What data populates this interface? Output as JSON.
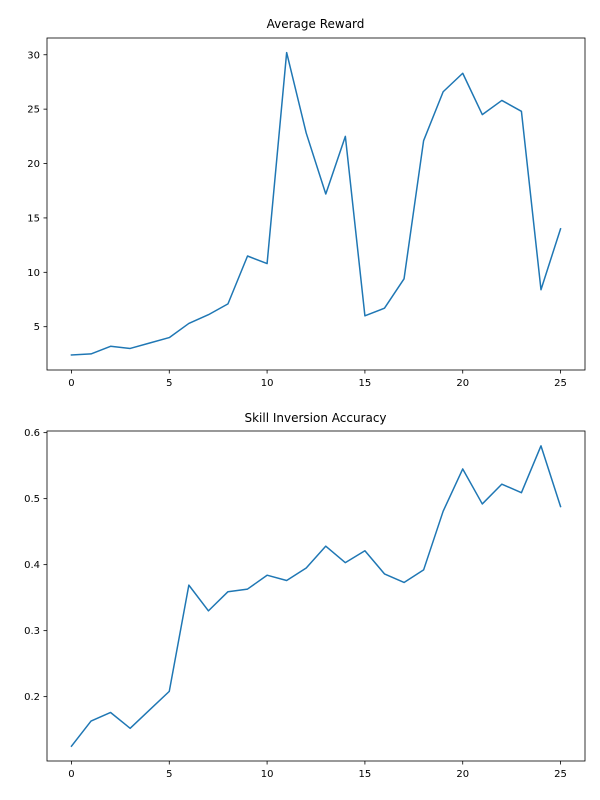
{
  "colors": {
    "series": "#1f77b4",
    "axis": "#000000",
    "background": "#ffffff"
  },
  "chart_data": [
    {
      "type": "line",
      "title": "Average Reward",
      "xlabel": "",
      "ylabel": "",
      "xlim": [
        -1.25,
        26.25
      ],
      "ylim": [
        1.02,
        31.54
      ],
      "xticks": [
        0,
        5,
        10,
        15,
        20,
        25
      ],
      "yticks": [
        5,
        10,
        15,
        20,
        25,
        30
      ],
      "grid": false,
      "series": [
        {
          "name": "Average Reward",
          "x": [
            0,
            1,
            2,
            3,
            4,
            5,
            6,
            7,
            8,
            9,
            10,
            11,
            12,
            13,
            14,
            15,
            16,
            17,
            18,
            19,
            20,
            21,
            22,
            23,
            24,
            25
          ],
          "y": [
            2.4,
            2.5,
            3.2,
            3.0,
            3.5,
            4.0,
            5.3,
            6.1,
            7.1,
            11.5,
            10.8,
            30.2,
            22.8,
            17.2,
            22.5,
            6.0,
            6.7,
            9.4,
            22.1,
            26.6,
            28.3,
            24.5,
            25.8,
            24.8,
            8.4,
            14.0
          ]
        }
      ]
    },
    {
      "type": "line",
      "title": "Skill Inversion Accuracy",
      "xlabel": "",
      "ylabel": "",
      "xlim": [
        -1.25,
        26.25
      ],
      "ylim": [
        0.1025,
        0.6025
      ],
      "xticks": [
        0,
        5,
        10,
        15,
        20,
        25
      ],
      "yticks": [
        0.2,
        0.3,
        0.4,
        0.5,
        0.6
      ],
      "yticklabels": [
        "0.2",
        "0.3",
        "0.4",
        "0.5",
        "0.6"
      ],
      "grid": false,
      "series": [
        {
          "name": "Skill Inversion Accuracy",
          "x": [
            0,
            1,
            2,
            3,
            4,
            5,
            6,
            7,
            8,
            9,
            10,
            11,
            12,
            13,
            14,
            15,
            16,
            17,
            18,
            19,
            20,
            21,
            22,
            23,
            24,
            25
          ],
          "y": [
            0.125,
            0.163,
            0.176,
            0.152,
            0.18,
            0.208,
            0.369,
            0.33,
            0.359,
            0.363,
            0.384,
            0.376,
            0.395,
            0.428,
            0.403,
            0.421,
            0.386,
            0.373,
            0.392,
            0.481,
            0.545,
            0.492,
            0.522,
            0.509,
            0.58,
            0.488
          ]
        }
      ]
    }
  ]
}
